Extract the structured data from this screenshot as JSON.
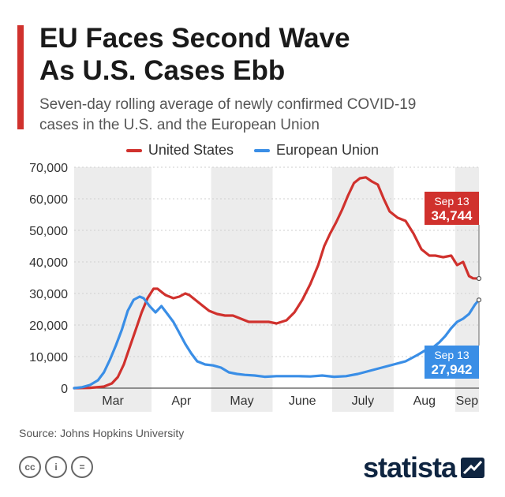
{
  "header": {
    "title": "EU Faces Second Wave\nAs U.S. Cases Ebb",
    "subtitle": "Seven-day rolling average of newly confirmed COVID-19\ncases in the U.S. and the European Union"
  },
  "source": "Source: Johns Hopkins University",
  "brand": {
    "logo_text": "statista",
    "license_icons": [
      "creative-commons-icon",
      "attribution-icon",
      "no-derivatives-icon"
    ],
    "license_labels": [
      "cc",
      "i",
      "="
    ]
  },
  "colors": {
    "us": "#d0312d",
    "eu": "#3a8ee6",
    "accent_bar": "#d0312d",
    "band": "#ececec"
  },
  "chart_data": {
    "type": "line",
    "title": "EU Faces Second Wave As U.S. Cases Ebb",
    "subtitle": "Seven-day rolling average of newly confirmed COVID-19 cases in the U.S. and the European Union",
    "xlabel": "",
    "ylabel": "",
    "ylim": [
      0,
      70000
    ],
    "yticks": [
      0,
      10000,
      20000,
      30000,
      40000,
      50000,
      60000,
      70000
    ],
    "ytick_labels": [
      "0",
      "10,000",
      "20,000",
      "30,000",
      "40,000",
      "50,000",
      "60,000",
      "70,000"
    ],
    "xlim": [
      "2020-02-22",
      "2020-09-13"
    ],
    "month_labels": [
      "Mar",
      "Apr",
      "May",
      "June",
      "July",
      "Aug",
      "Sep"
    ],
    "grid": true,
    "legend_position": "top-center",
    "series": [
      {
        "name": "United States",
        "color": "#d0312d",
        "x": [
          "2020-02-22",
          "2020-03-01",
          "2020-03-08",
          "2020-03-12",
          "2020-03-15",
          "2020-03-18",
          "2020-03-21",
          "2020-03-24",
          "2020-03-27",
          "2020-03-30",
          "2020-04-02",
          "2020-04-04",
          "2020-04-06",
          "2020-04-08",
          "2020-04-10",
          "2020-04-12",
          "2020-04-15",
          "2020-04-18",
          "2020-04-20",
          "2020-04-23",
          "2020-04-26",
          "2020-04-30",
          "2020-05-04",
          "2020-05-08",
          "2020-05-12",
          "2020-05-16",
          "2020-05-20",
          "2020-05-25",
          "2020-05-30",
          "2020-06-03",
          "2020-06-08",
          "2020-06-12",
          "2020-06-16",
          "2020-06-20",
          "2020-06-24",
          "2020-06-27",
          "2020-06-30",
          "2020-07-03",
          "2020-07-06",
          "2020-07-09",
          "2020-07-12",
          "2020-07-15",
          "2020-07-18",
          "2020-07-21",
          "2020-07-24",
          "2020-07-27",
          "2020-07-30",
          "2020-08-03",
          "2020-08-07",
          "2020-08-11",
          "2020-08-15",
          "2020-08-19",
          "2020-08-22",
          "2020-08-26",
          "2020-08-30",
          "2020-09-02",
          "2020-09-05",
          "2020-09-08",
          "2020-09-10",
          "2020-09-13"
        ],
        "y": [
          0,
          100,
          500,
          1500,
          3500,
          7500,
          13000,
          18500,
          24000,
          28500,
          31500,
          31500,
          30500,
          29500,
          29000,
          28500,
          29000,
          30000,
          29500,
          28000,
          26500,
          24500,
          23500,
          23000,
          23000,
          22000,
          21000,
          21000,
          21000,
          20500,
          21500,
          24000,
          28000,
          33000,
          39000,
          45000,
          49000,
          52500,
          56500,
          61000,
          65000,
          66500,
          66800,
          65500,
          64500,
          60000,
          56000,
          54000,
          53000,
          49000,
          44000,
          42000,
          42000,
          41500,
          42000,
          39000,
          40000,
          35500,
          34800,
          34744
        ]
      },
      {
        "name": "European Union",
        "color": "#3a8ee6",
        "x": [
          "2020-02-22",
          "2020-02-26",
          "2020-03-01",
          "2020-03-05",
          "2020-03-08",
          "2020-03-11",
          "2020-03-14",
          "2020-03-17",
          "2020-03-20",
          "2020-03-23",
          "2020-03-26",
          "2020-03-28",
          "2020-03-31",
          "2020-04-03",
          "2020-04-06",
          "2020-04-09",
          "2020-04-12",
          "2020-04-15",
          "2020-04-18",
          "2020-04-21",
          "2020-04-24",
          "2020-04-28",
          "2020-05-02",
          "2020-05-06",
          "2020-05-10",
          "2020-05-14",
          "2020-05-18",
          "2020-05-23",
          "2020-05-28",
          "2020-06-03",
          "2020-06-08",
          "2020-06-14",
          "2020-06-20",
          "2020-06-26",
          "2020-07-02",
          "2020-07-08",
          "2020-07-14",
          "2020-07-20",
          "2020-07-26",
          "2020-08-01",
          "2020-08-07",
          "2020-08-13",
          "2020-08-17",
          "2020-08-21",
          "2020-08-24",
          "2020-08-27",
          "2020-08-30",
          "2020-09-02",
          "2020-09-05",
          "2020-09-08",
          "2020-09-11",
          "2020-09-13"
        ],
        "y": [
          0,
          300,
          1000,
          2500,
          5000,
          9000,
          13500,
          18500,
          24500,
          28000,
          29000,
          28500,
          26000,
          24000,
          26000,
          23500,
          21000,
          17500,
          14000,
          11000,
          8500,
          7500,
          7200,
          6500,
          5000,
          4500,
          4200,
          4000,
          3600,
          3800,
          3800,
          3800,
          3700,
          4000,
          3600,
          3800,
          4500,
          5500,
          6500,
          7500,
          8500,
          10500,
          12000,
          13000,
          14500,
          16500,
          19000,
          21000,
          22000,
          23500,
          26500,
          27942
        ]
      }
    ],
    "annotations": [
      {
        "series": "United States",
        "date_label": "Sep 13",
        "value_label": "34,744",
        "value": 34744
      },
      {
        "series": "European Union",
        "date_label": "Sep 13",
        "value_label": "27,942",
        "value": 27942
      }
    ]
  }
}
